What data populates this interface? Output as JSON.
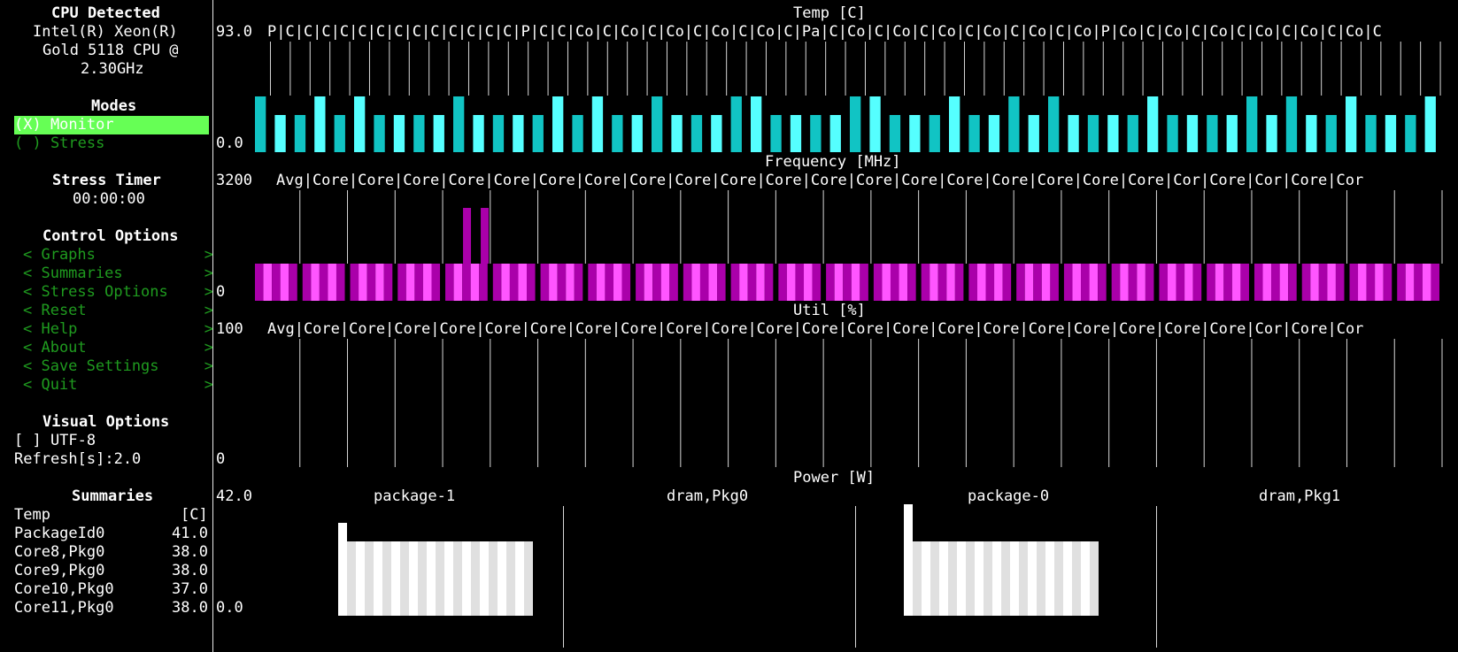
{
  "sidebar": {
    "cpu_title": "CPU Detected",
    "cpu_lines": [
      "Intel(R) Xeon(R)",
      "Gold 5118 CPU @",
      "2.30GHz"
    ],
    "modes_title": "Modes",
    "modes": [
      {
        "label": "(X) Monitor",
        "selected": true
      },
      {
        "label": "( ) Stress",
        "selected": false
      }
    ],
    "stress_timer_title": "Stress Timer",
    "stress_timer_value": "00:00:00",
    "control_title": "Control Options",
    "control_items": [
      {
        "label": "< Graphs            >"
      },
      {
        "label": "< Summaries         >"
      },
      {
        "label": "< Stress Options    >"
      },
      {
        "label": "< Reset             >"
      },
      {
        "label": "< Help              >"
      },
      {
        "label": "< About             >"
      },
      {
        "label": "< Save Settings     >"
      },
      {
        "label": "< Quit              >"
      }
    ],
    "visual_title": "Visual Options",
    "utf8_option": "[ ] UTF-8",
    "refresh_label": "Refresh[s]:2.0",
    "summaries_title": "Summaries",
    "summary_rows": [
      {
        "name": "Temp",
        "value": "[C]"
      },
      {
        "name": "PackageId0",
        "value": "41.0"
      },
      {
        "name": "Core8,Pkg0",
        "value": "38.0"
      },
      {
        "name": "Core9,Pkg0",
        "value": "38.0"
      },
      {
        "name": "Core10,Pkg0",
        "value": "37.0"
      },
      {
        "name": "Core11,Pkg0",
        "value": "38.0"
      }
    ]
  },
  "graphs": {
    "temp": {
      "title": "Temp [C]",
      "max_label": "93.0",
      "min_label": "0.0",
      "header": "P|C|C|C|C|C|C|C|C|C|C|C|C|C|P|C|C|Co|C|Co|C|Co|C|Co|C|Co|C|Pa|C|Co|C|Co|C|Co|C|Co|C|Co|C|Co|P|Co|C|Co|C|Co|C|Co|C|Co|C|Co|C",
      "color_a": "#11c4c4",
      "color_b": "#55ffff",
      "columns": 60
    },
    "freq": {
      "title": "Frequency [MHz]",
      "max_label": "3200",
      "min_label": "0",
      "header": "Avg|Core|Core|Core|Core|Core|Core|Core|Core|Core|Core|Core|Core|Core|Core|Core|Core|Core|Core|Core|Cor|Core|Cor|Core|Cor",
      "color_a": "#aa00aa",
      "color_b": "#ff55ff"
    },
    "util": {
      "title": "Util [%]",
      "max_label": "100",
      "min_label": "0",
      "header": "Avg|Core|Core|Core|Core|Core|Core|Core|Core|Core|Core|Core|Core|Core|Core|Core|Core|Core|Core|Core|Core|Core|Cor|Core|Cor"
    },
    "power": {
      "title": "Power [W]",
      "max_label": "42.0",
      "min_label": "0.0",
      "panels": [
        "package-1",
        "dram,Pkg0",
        "package-0",
        "dram,Pkg1"
      ],
      "color_a": "#ffffff",
      "color_b": "#e0e0e0"
    }
  }
}
